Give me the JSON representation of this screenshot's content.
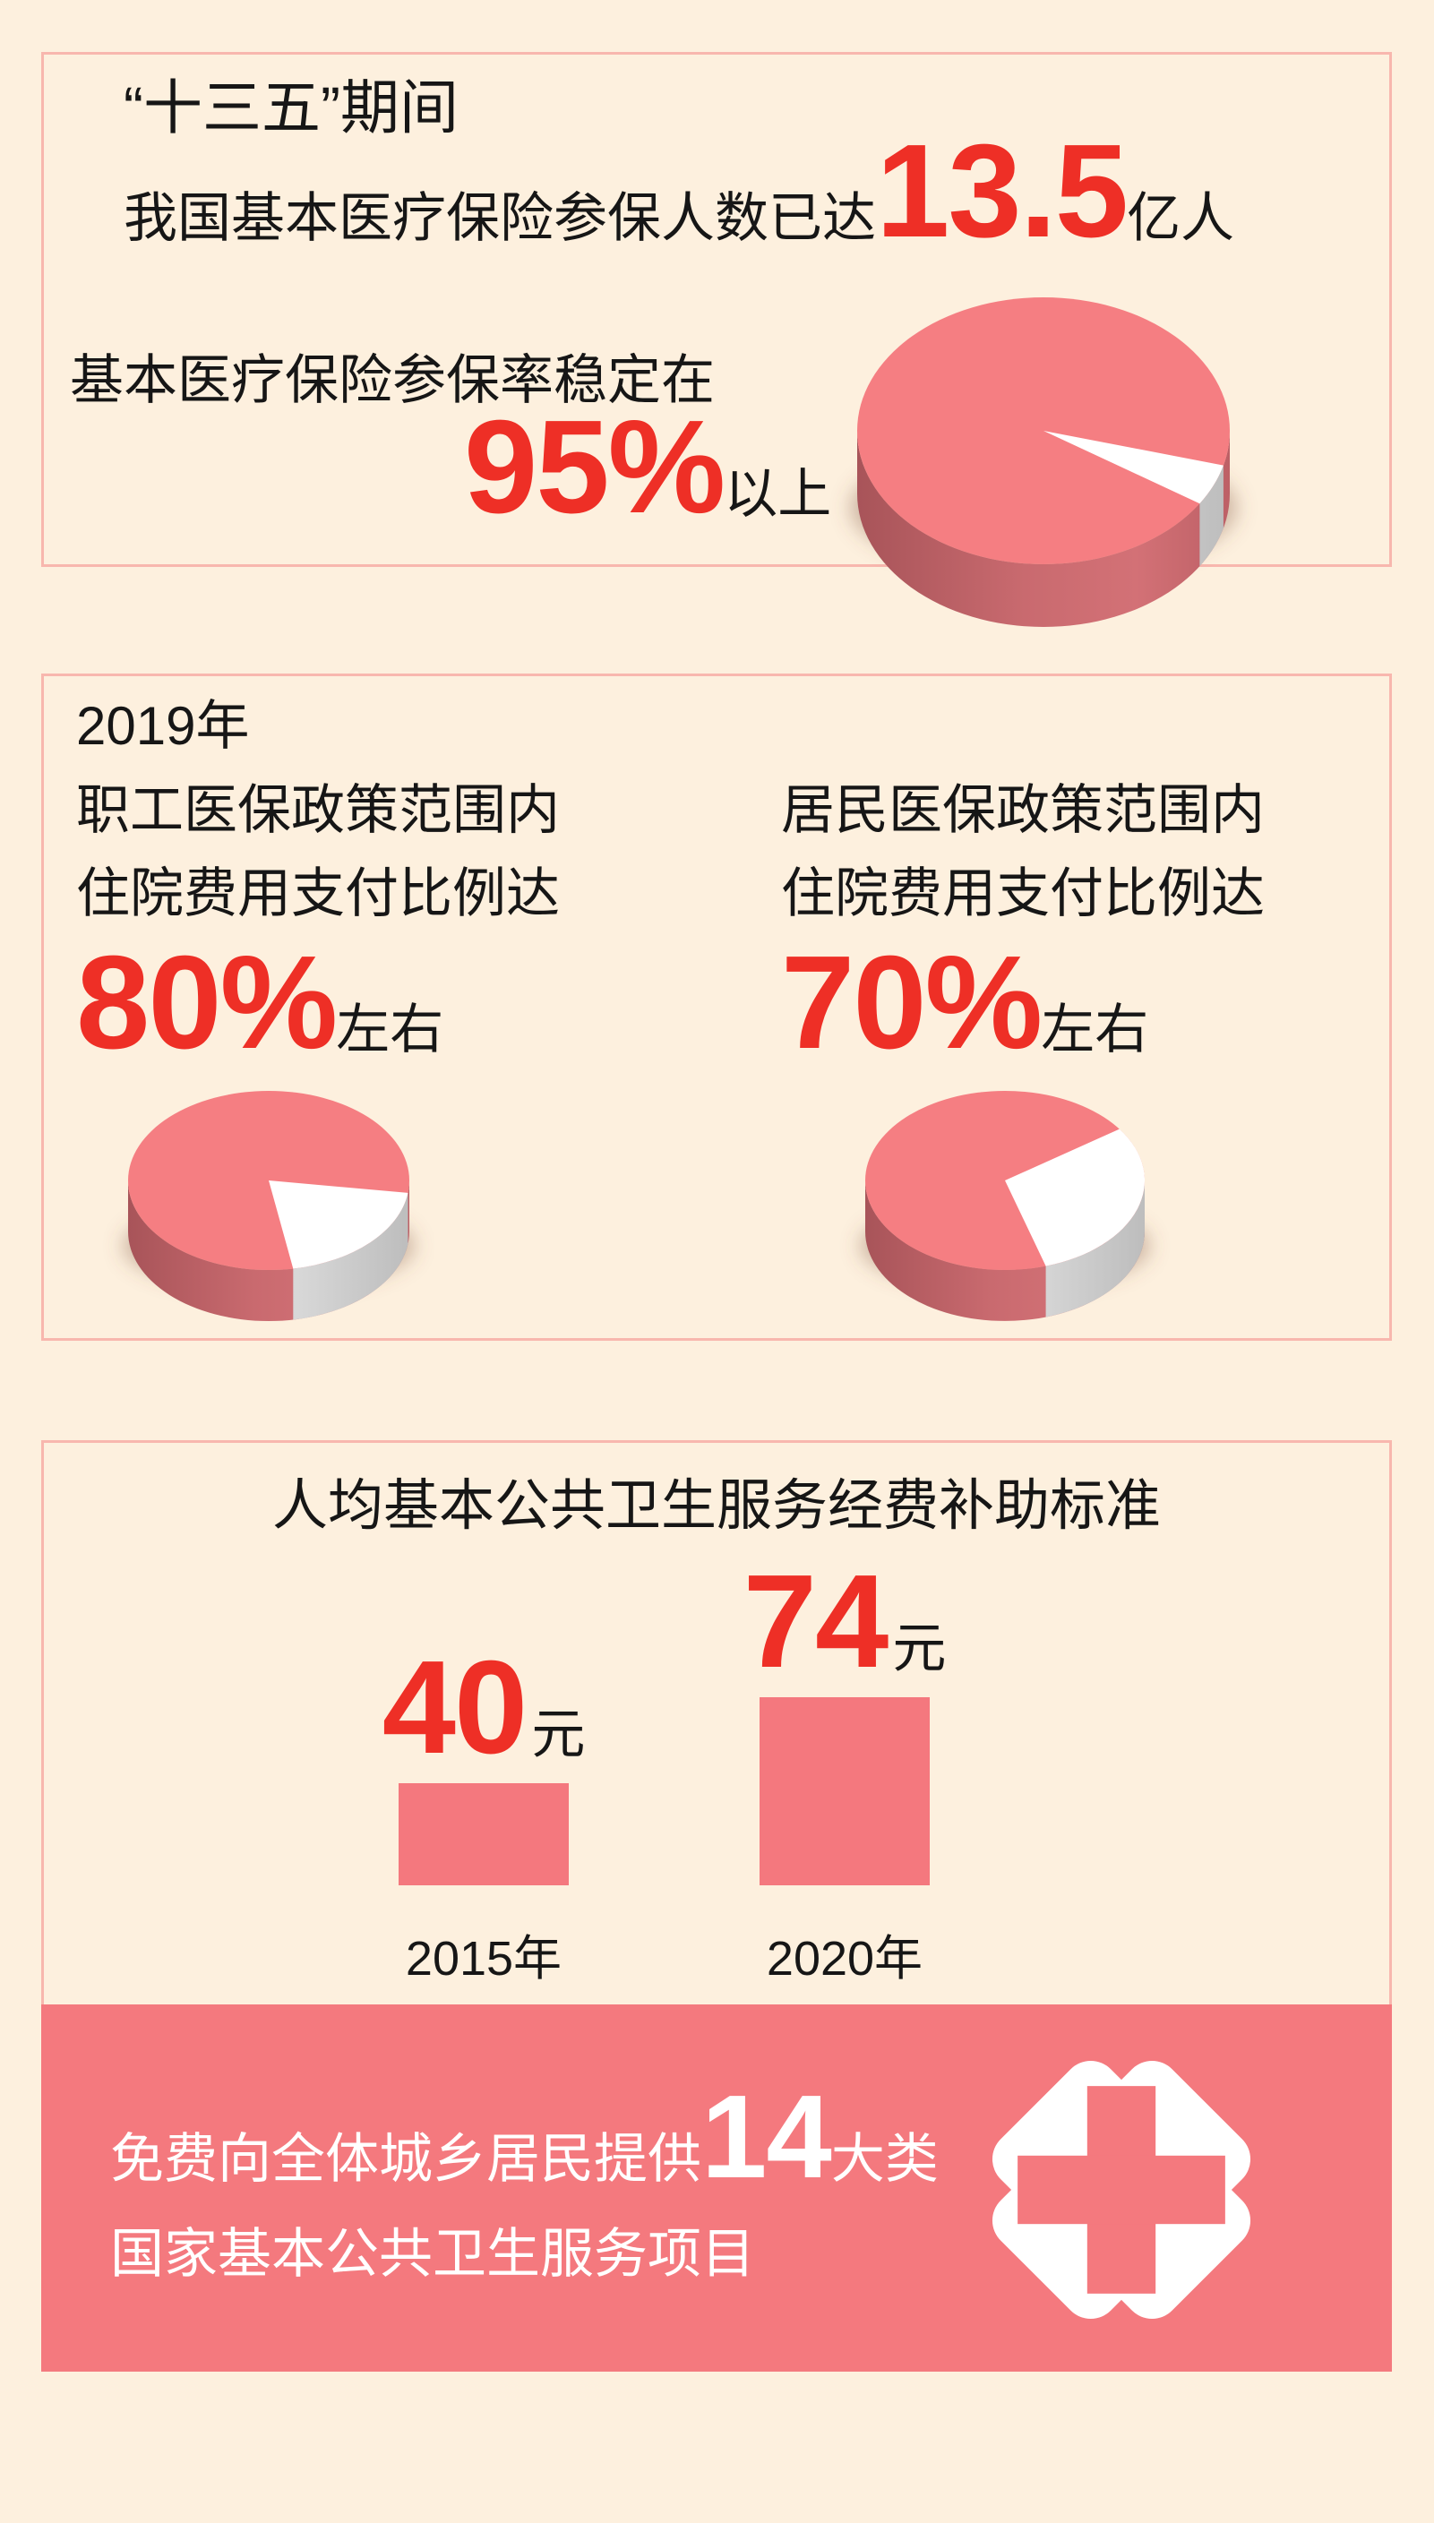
{
  "page": {
    "background": "#fdf0de",
    "panel_border": "#f8b7ae",
    "accent_red": "#ee2f26",
    "salmon": "#f4787e",
    "text_black": "#161616",
    "white": "#ffffff"
  },
  "section1": {
    "line1": "“十三五”期间",
    "enroll_prefix": "我国基本医疗保险参保人数已达",
    "enroll_value": "13.5",
    "enroll_unit": "亿人",
    "rate_line": "基本医疗保险参保率稳定在",
    "rate_value": "95%",
    "rate_suffix": "以上"
  },
  "section2": {
    "year": "2019年",
    "left": {
      "line1": "职工医保政策范围内",
      "line2": "住院费用支付比例达",
      "value": "80%",
      "suffix": "左右"
    },
    "right": {
      "line1": "居民医保政策范围内",
      "line2": "住院费用支付比例达",
      "value": "70%",
      "suffix": "左右"
    }
  },
  "section3": {
    "title": "人均基本公共卫生服务经费补助标准",
    "unit": "元"
  },
  "banner": {
    "line1_prefix": "免费向全体城乡居民提供",
    "line1_value": "14",
    "line1_suffix": "大类",
    "line2": "国家基本公共卫生服务项目"
  },
  "chart_data": [
    {
      "type": "pie",
      "title": "基本医疗保险参保率稳定在95%以上",
      "annotation": "95%以上",
      "slices": [
        {
          "value": 95,
          "color": "#f57e82"
        },
        {
          "value": 5,
          "color": "#ffffff"
        }
      ],
      "style": "3d-pie"
    },
    {
      "type": "pie",
      "title": "职工医保政策范围内住院费用支付比例达80%左右",
      "annotation": "80%左右",
      "slices": [
        {
          "value": 80,
          "color": "#f57e82"
        },
        {
          "value": 20,
          "color": "#ffffff"
        }
      ],
      "style": "3d-pie"
    },
    {
      "type": "pie",
      "title": "居民医保政策范围内住院费用支付比例达70%左右",
      "annotation": "70%左右",
      "slices": [
        {
          "value": 70,
          "color": "#f57e82"
        },
        {
          "value": 30,
          "color": "#ffffff"
        }
      ],
      "style": "3d-pie"
    },
    {
      "type": "bar",
      "title": "人均基本公共卫生服务经费补助标准",
      "categories": [
        "2015年",
        "2020年"
      ],
      "values": [
        40,
        74
      ],
      "unit": "元",
      "bar_color": "#f4787e",
      "ylim": [
        0,
        80
      ],
      "grid": false,
      "legend": "none"
    }
  ]
}
